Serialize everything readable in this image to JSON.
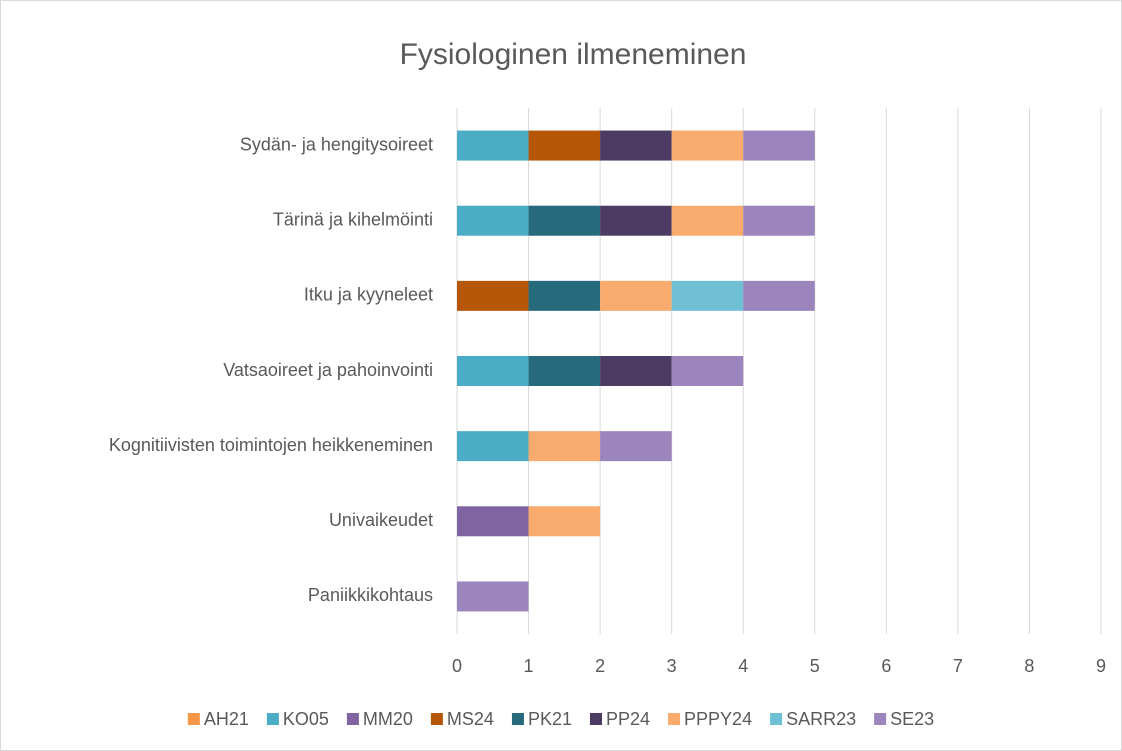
{
  "chart_data": {
    "type": "stacked_horizontal_bar",
    "title": "Fysiologinen ilmeneminen",
    "categories": [
      "Sydän- ja hengitysoireet",
      "Tärinä ja kihelmöinti",
      "Itku ja kyyneleet",
      "Vatsaoireet ja pahoinvointi",
      "Kognitiivisten toimintojen heikkeneminen",
      "Univaikeudet",
      "Paniikkikohtaus"
    ],
    "series": [
      {
        "name": "AH21",
        "color": "#f79646",
        "values": [
          0,
          0,
          0,
          0,
          0,
          0,
          0
        ]
      },
      {
        "name": "KO05",
        "color": "#4bacc6",
        "values": [
          1,
          1,
          0,
          1,
          1,
          0,
          0
        ]
      },
      {
        "name": "MM20",
        "color": "#8064a2",
        "values": [
          0,
          0,
          0,
          0,
          0,
          1,
          0
        ]
      },
      {
        "name": "MS24",
        "color": "#b65708",
        "values": [
          1,
          0,
          1,
          0,
          0,
          0,
          0
        ]
      },
      {
        "name": "PK21",
        "color": "#276a7c",
        "values": [
          0,
          1,
          1,
          1,
          0,
          0,
          0
        ]
      },
      {
        "name": "PP24",
        "color": "#4c3b62",
        "values": [
          1,
          1,
          0,
          1,
          0,
          0,
          0
        ]
      },
      {
        "name": "PPPY24",
        "color": "#f9ab6e",
        "values": [
          1,
          1,
          1,
          0,
          1,
          1,
          0
        ]
      },
      {
        "name": "SARR23",
        "color": "#6fc0d4",
        "values": [
          0,
          0,
          1,
          0,
          0,
          0,
          0
        ]
      },
      {
        "name": "SE23",
        "color": "#9c85bd",
        "values": [
          1,
          1,
          1,
          1,
          1,
          0,
          1
        ]
      }
    ],
    "xlim": [
      0,
      9
    ],
    "xticks": [
      0,
      1,
      2,
      3,
      4,
      5,
      6,
      7,
      8,
      9
    ],
    "grid": true,
    "legend": "bottom"
  }
}
